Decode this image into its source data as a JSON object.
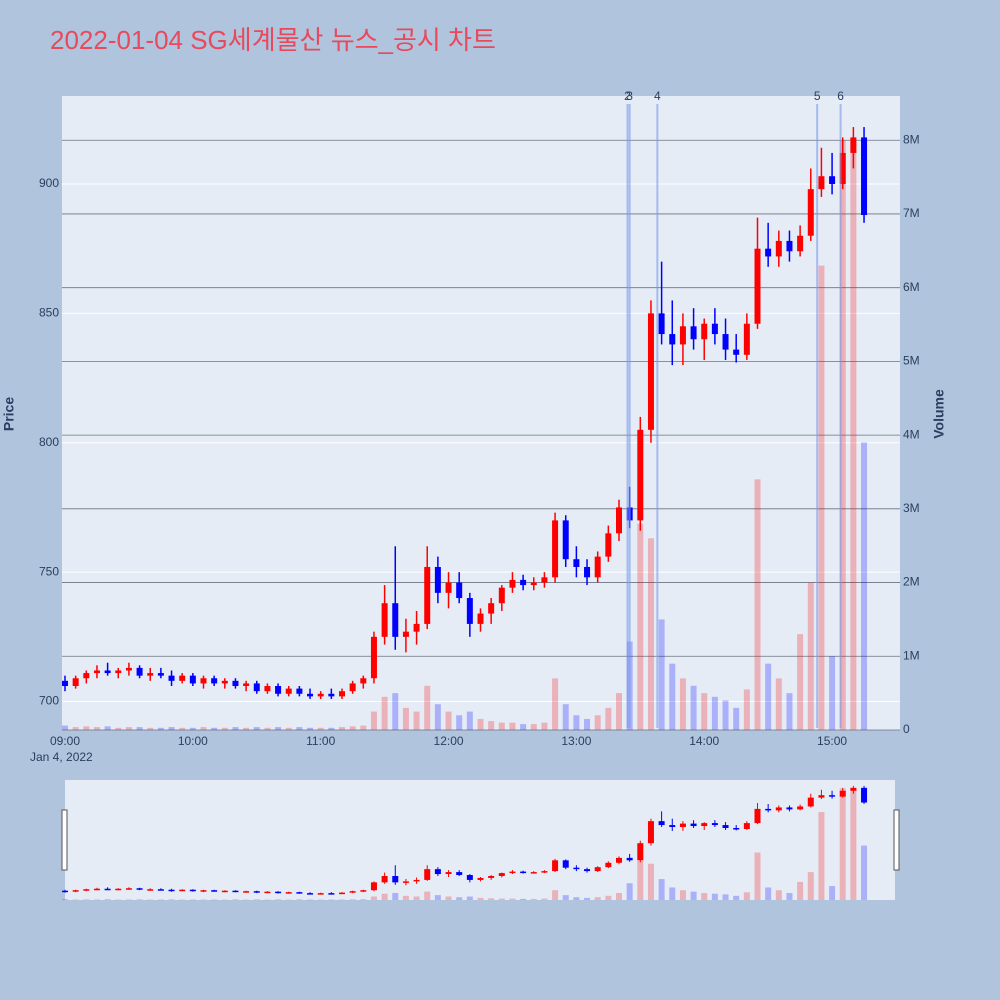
{
  "chart_data": {
    "type": "candlestick",
    "title": "2022-01-04 SG세계물산 뉴스_공시 차트",
    "y_title": "Price",
    "y2_title": "Volume",
    "x_date_label": "Jan 4, 2022",
    "increasing_color": "#ff0000",
    "decreasing_color": "#0000ff",
    "x": [
      "2022-01-04 09:00",
      "2022-01-04 09:05",
      "2022-01-04 09:10",
      "2022-01-04 09:15",
      "2022-01-04 09:20",
      "2022-01-04 09:25",
      "2022-01-04 09:30",
      "2022-01-04 09:35",
      "2022-01-04 09:40",
      "2022-01-04 09:45",
      "2022-01-04 09:50",
      "2022-01-04 09:55",
      "2022-01-04 10:00",
      "2022-01-04 10:05",
      "2022-01-04 10:10",
      "2022-01-04 10:15",
      "2022-01-04 10:20",
      "2022-01-04 10:25",
      "2022-01-04 10:30",
      "2022-01-04 10:35",
      "2022-01-04 10:40",
      "2022-01-04 10:45",
      "2022-01-04 10:50",
      "2022-01-04 10:55",
      "2022-01-04 11:00",
      "2022-01-04 11:05",
      "2022-01-04 11:10",
      "2022-01-04 11:15",
      "2022-01-04 11:20",
      "2022-01-04 11:25",
      "2022-01-04 11:30",
      "2022-01-04 11:35",
      "2022-01-04 11:40",
      "2022-01-04 11:45",
      "2022-01-04 11:50",
      "2022-01-04 11:55",
      "2022-01-04 12:00",
      "2022-01-04 12:05",
      "2022-01-04 12:10",
      "2022-01-04 12:15",
      "2022-01-04 12:20",
      "2022-01-04 12:25",
      "2022-01-04 12:30",
      "2022-01-04 12:35",
      "2022-01-04 12:40",
      "2022-01-04 12:45",
      "2022-01-04 12:50",
      "2022-01-04 12:55",
      "2022-01-04 13:00",
      "2022-01-04 13:05",
      "2022-01-04 13:10",
      "2022-01-04 13:15",
      "2022-01-04 13:20",
      "2022-01-04 13:25",
      "2022-01-04 13:30",
      "2022-01-04 13:35",
      "2022-01-04 13:40",
      "2022-01-04 13:45",
      "2022-01-04 13:50",
      "2022-01-04 13:55",
      "2022-01-04 14:00",
      "2022-01-04 14:05",
      "2022-01-04 14:10",
      "2022-01-04 14:15",
      "2022-01-04 14:20",
      "2022-01-04 14:25",
      "2022-01-04 14:30",
      "2022-01-04 14:35",
      "2022-01-04 14:40",
      "2022-01-04 14:45",
      "2022-01-04 14:50",
      "2022-01-04 14:55",
      "2022-01-04 15:00",
      "2022-01-04 15:05",
      "2022-01-04 15:10",
      "2022-01-04 15:15"
    ],
    "open": [
      708,
      706,
      709,
      711,
      712,
      711,
      712,
      713,
      710,
      711,
      710,
      708,
      710,
      707,
      709,
      707,
      708,
      706,
      707,
      704,
      706,
      703,
      705,
      703,
      702,
      703,
      702,
      704,
      707,
      709,
      725,
      738,
      725,
      727,
      730,
      752,
      742,
      746,
      740,
      730,
      734,
      738,
      744,
      747,
      745,
      746,
      748,
      770,
      755,
      752,
      748,
      756,
      765,
      775,
      770,
      805,
      850,
      842,
      838,
      845,
      840,
      846,
      842,
      836,
      834,
      846,
      875,
      872,
      878,
      874,
      880,
      898,
      903,
      900,
      912,
      918
    ],
    "high": [
      710,
      710,
      712,
      714,
      715,
      713,
      715,
      714,
      713,
      713,
      712,
      711,
      711,
      710,
      710,
      709,
      709,
      708,
      708,
      707,
      707,
      706,
      706,
      705,
      704,
      705,
      705,
      708,
      710,
      727,
      745,
      760,
      732,
      735,
      760,
      756,
      750,
      750,
      742,
      736,
      740,
      745,
      750,
      749,
      748,
      750,
      773,
      772,
      760,
      755,
      758,
      768,
      778,
      783,
      810,
      855,
      870,
      855,
      850,
      852,
      848,
      852,
      848,
      842,
      850,
      887,
      885,
      882,
      882,
      884,
      906,
      914,
      912,
      918,
      922,
      922
    ],
    "low": [
      704,
      705,
      707,
      709,
      710,
      709,
      710,
      709,
      708,
      709,
      706,
      707,
      706,
      705,
      706,
      705,
      705,
      704,
      703,
      703,
      702,
      702,
      702,
      701,
      701,
      701,
      701,
      703,
      705,
      707,
      722,
      720,
      719,
      722,
      728,
      738,
      736,
      738,
      725,
      727,
      730,
      735,
      742,
      743,
      743,
      744,
      746,
      752,
      748,
      745,
      746,
      754,
      762,
      767,
      766,
      800,
      838,
      830,
      830,
      836,
      832,
      838,
      832,
      831,
      832,
      844,
      868,
      868,
      870,
      872,
      878,
      895,
      896,
      898,
      906,
      885
    ],
    "close": [
      706,
      709,
      711,
      712,
      711,
      712,
      713,
      710,
      711,
      710,
      708,
      710,
      707,
      709,
      707,
      708,
      706,
      707,
      704,
      706,
      703,
      705,
      703,
      702,
      703,
      702,
      704,
      707,
      709,
      725,
      738,
      725,
      727,
      730,
      752,
      742,
      746,
      740,
      730,
      734,
      738,
      744,
      747,
      745,
      746,
      748,
      770,
      755,
      752,
      748,
      756,
      765,
      775,
      770,
      805,
      850,
      842,
      838,
      845,
      840,
      846,
      842,
      836,
      834,
      846,
      875,
      872,
      878,
      874,
      880,
      898,
      903,
      900,
      912,
      918,
      888
    ],
    "volume": [
      60000,
      40000,
      50000,
      40000,
      50000,
      30000,
      40000,
      40000,
      30000,
      30000,
      40000,
      30000,
      30000,
      40000,
      30000,
      30000,
      40000,
      30000,
      40000,
      30000,
      40000,
      30000,
      40000,
      30000,
      30000,
      30000,
      40000,
      50000,
      60000,
      250000,
      450000,
      500000,
      300000,
      250000,
      600000,
      350000,
      250000,
      200000,
      250000,
      150000,
      120000,
      100000,
      100000,
      80000,
      80000,
      100000,
      700000,
      350000,
      200000,
      150000,
      200000,
      300000,
      500000,
      1200000,
      2800000,
      2600000,
      1500000,
      900000,
      700000,
      600000,
      500000,
      450000,
      400000,
      300000,
      550000,
      3400000,
      900000,
      700000,
      500000,
      1300000,
      2000000,
      6300000,
      1000000,
      8000000,
      8000000,
      3900000
    ],
    "xlim": [
      "2022-01-04 09:00",
      "2022-01-04 15:30"
    ],
    "xticks": [
      {
        "value": "2022-01-04 09:00",
        "label": "09:00"
      },
      {
        "value": "2022-01-04 10:00",
        "label": "10:00"
      },
      {
        "value": "2022-01-04 11:00",
        "label": "11:00"
      },
      {
        "value": "2022-01-04 12:00",
        "label": "12:00"
      },
      {
        "value": "2022-01-04 13:00",
        "label": "13:00"
      },
      {
        "value": "2022-01-04 14:00",
        "label": "14:00"
      },
      {
        "value": "2022-01-04 15:00",
        "label": "15:00"
      }
    ],
    "ylim": [
      689,
      934
    ],
    "yticks": [
      700,
      750,
      800,
      850,
      900
    ],
    "y2lim": [
      0,
      8600000
    ],
    "y2ticks": [
      0,
      {
        "value": 1000000,
        "label": "1M"
      },
      {
        "value": 2000000,
        "label": "2M"
      },
      {
        "value": 3000000,
        "label": "3M"
      },
      {
        "value": 4000000,
        "label": "4M"
      },
      {
        "value": 5000000,
        "label": "5M"
      },
      {
        "value": 6000000,
        "label": "6M"
      },
      {
        "value": 7000000,
        "label": "7M"
      },
      {
        "value": 8000000,
        "label": "8M"
      }
    ],
    "grid": true,
    "annotations": [
      {
        "x": "2022-01-04 13:24",
        "text": "2"
      },
      {
        "x": "2022-01-04 13:25",
        "text": "3"
      },
      {
        "x": "2022-01-04 13:38",
        "text": "4"
      },
      {
        "x": "2022-01-04 14:53",
        "text": "5"
      },
      {
        "x": "2022-01-04 15:04",
        "text": "6"
      }
    ]
  }
}
